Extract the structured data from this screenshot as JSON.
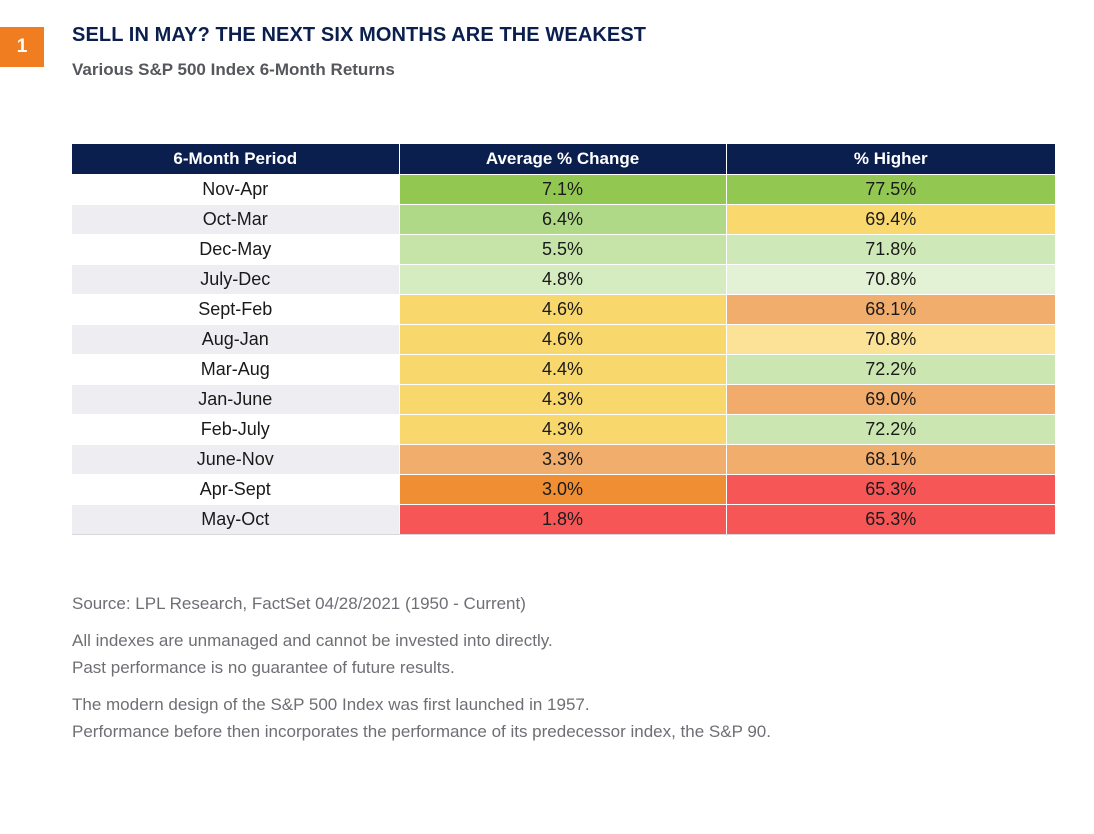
{
  "badge": "1",
  "title": "SELL IN MAY? THE NEXT SIX MONTHS ARE THE WEAKEST",
  "subtitle": "Various S&P 500 Index 6-Month Returns",
  "chart_data": {
    "type": "table",
    "columns": [
      "6-Month Period",
      "Average % Change",
      "% Higher"
    ],
    "rows": [
      {
        "period": "Nov-Apr",
        "avg": "7.1%",
        "higher": "77.5%",
        "avg_color": "#92c852",
        "higher_color": "#92c852"
      },
      {
        "period": "Oct-Mar",
        "avg": "6.4%",
        "higher": "69.4%",
        "avg_color": "#b0d987",
        "higher_color": "#f9d86e"
      },
      {
        "period": "Dec-May",
        "avg": "5.5%",
        "higher": "71.8%",
        "avg_color": "#c6e4a8",
        "higher_color": "#cfe8b7"
      },
      {
        "period": "July-Dec",
        "avg": "4.8%",
        "higher": "70.8%",
        "avg_color": "#d5ebc0",
        "higher_color": "#e3f1d5"
      },
      {
        "period": "Sept-Feb",
        "avg": "4.6%",
        "higher": "68.1%",
        "avg_color": "#f8d76d",
        "higher_color": "#f1ad6c"
      },
      {
        "period": "Aug-Jan",
        "avg": "4.6%",
        "higher": "70.8%",
        "avg_color": "#f8d76d",
        "higher_color": "#fbe296"
      },
      {
        "period": "Mar-Aug",
        "avg": "4.4%",
        "higher": "72.2%",
        "avg_color": "#f8d76d",
        "higher_color": "#cbe6b0"
      },
      {
        "period": "Jan-June",
        "avg": "4.3%",
        "higher": "69.0%",
        "avg_color": "#f8d76d",
        "higher_color": "#f1ac6b"
      },
      {
        "period": "Feb-July",
        "avg": "4.3%",
        "higher": "72.2%",
        "avg_color": "#f8d76d",
        "higher_color": "#cbe6b0"
      },
      {
        "period": "June-Nov",
        "avg": "3.3%",
        "higher": "68.1%",
        "avg_color": "#f1ad6c",
        "higher_color": "#f1ad6c"
      },
      {
        "period": "Apr-Sept",
        "avg": "3.0%",
        "higher": "65.3%",
        "avg_color": "#ef8e33",
        "higher_color": "#f75656"
      },
      {
        "period": "May-Oct",
        "avg": "1.8%",
        "higher": "65.3%",
        "avg_color": "#f75656",
        "higher_color": "#f75656"
      }
    ]
  },
  "notes": {
    "source": "Source: LPL Research, FactSet  04/28/2021 (1950 - Current)",
    "disclaimer_1": "All indexes are unmanaged and cannot be invested into directly.",
    "disclaimer_2": "Past performance is no guarantee of future results.",
    "history_1": "The modern design of the S&P 500 Index was first launched in 1957.",
    "history_2": "Performance before then incorporates the performance of its predecessor index, the S&P 90."
  }
}
